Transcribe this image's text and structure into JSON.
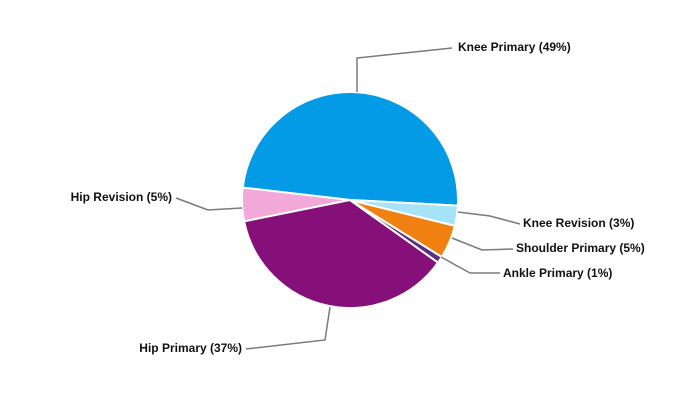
{
  "chart_data": {
    "type": "pie",
    "value_labels": [
      "Knee Primary (49%)",
      "Hip Revision (5%)",
      "Hip Primary (37%)",
      "Ankle Primary (1%)",
      "Shoulder Primary (5%)",
      "Knee Revision (3%)"
    ],
    "values": [
      49,
      5,
      37,
      1,
      5,
      3
    ],
    "colors": [
      "#039be5",
      "#f2a9d9",
      "#861079",
      "#5a2d82",
      "#f0800f",
      "#a6e3f7"
    ]
  }
}
